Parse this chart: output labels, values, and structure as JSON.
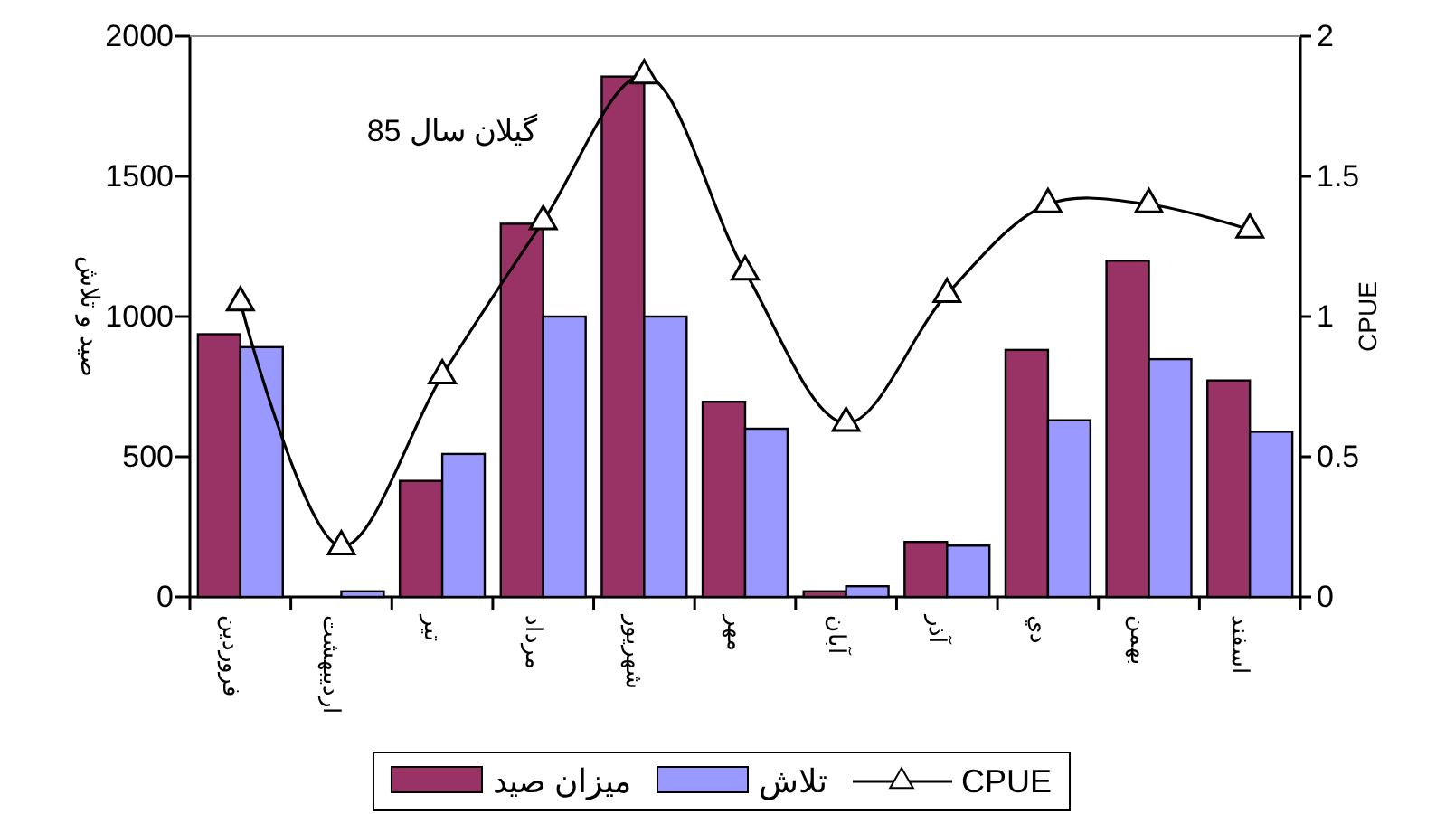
{
  "chart_data": {
    "type": "bar",
    "categories": [
      "فروردين",
      "ارديبهشت",
      "تير",
      "مرداد",
      "شهريور",
      "مهر",
      "آبان",
      "آذر",
      "دي",
      "بهمن",
      "اسفند"
    ],
    "series": [
      {
        "name": "ميزان صيد",
        "color": "#993366",
        "values": [
          937,
          0,
          414,
          1331,
          1856,
          696,
          20,
          196,
          881,
          1199,
          772
        ]
      },
      {
        "name": "تلاش",
        "color": "#9999ff",
        "values": [
          891,
          20,
          510,
          1000,
          1000,
          600,
          38,
          183,
          630,
          848,
          589
        ]
      },
      {
        "name": "CPUE",
        "type": "line",
        "axis": "y2",
        "color": "#000000",
        "marker": "triangle",
        "values": [
          1.05,
          0.18,
          0.79,
          1.34,
          1.86,
          1.16,
          0.62,
          1.08,
          1.4,
          1.4,
          1.31
        ]
      }
    ],
    "ylabel": "صید و تلاش",
    "y2label": "CPUE",
    "ylim": [
      0,
      2000
    ],
    "yticks": [
      0,
      500,
      1000,
      1500,
      2000
    ],
    "y2lim": [
      0,
      2
    ],
    "y2ticks": [
      0,
      {
        "value": 0.5,
        "label": "0.5"
      },
      1,
      {
        "value": 1.5,
        "label": "1.5"
      },
      2
    ],
    "annotations": [
      "گیلان سال 85"
    ],
    "legend": "bottom",
    "grid": false
  }
}
